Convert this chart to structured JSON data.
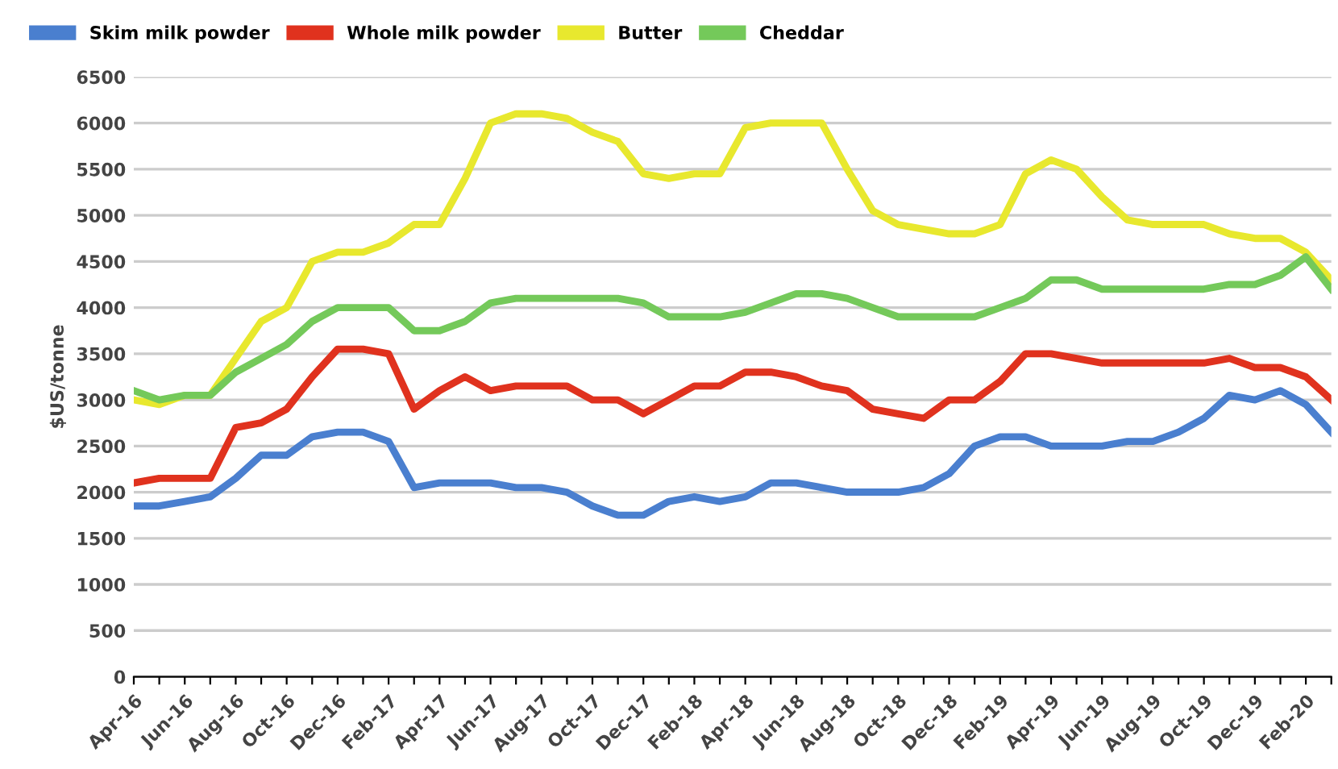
{
  "chart_data": {
    "type": "line",
    "ylabel": "$US/tonne",
    "categories": [
      "Apr-16",
      null,
      "Jun-16",
      null,
      "Aug-16",
      null,
      "Oct-16",
      null,
      "Dec-16",
      null,
      "Feb-17",
      null,
      "Apr-17",
      null,
      "Jun-17",
      null,
      "Aug-17",
      null,
      "Oct-17",
      null,
      "Dec-17",
      null,
      "Feb-18",
      null,
      "Apr-18",
      null,
      "Jun-18",
      null,
      "Aug-18",
      null,
      "Oct-18",
      null,
      "Dec-18",
      null,
      "Feb-19",
      null,
      "Apr-19",
      null,
      "Jun-19",
      null,
      "Aug-19",
      null,
      "Oct-19",
      null,
      "Dec-19",
      null,
      "Feb-20",
      null
    ],
    "series": [
      {
        "name": "Skim milk powder",
        "color": "#4a7fcf",
        "values": [
          1850,
          1850,
          1900,
          1950,
          2150,
          2400,
          2400,
          2600,
          2650,
          2650,
          2550,
          2050,
          2100,
          2100,
          2100,
          2050,
          2050,
          2000,
          1850,
          1750,
          1750,
          1900,
          1950,
          1900,
          1950,
          2100,
          2100,
          2050,
          2000,
          2000,
          2000,
          2050,
          2200,
          2500,
          2600,
          2600,
          2500,
          2500,
          2500,
          2550,
          2550,
          2650,
          2800,
          3050,
          3000,
          3100,
          2950,
          2650
        ]
      },
      {
        "name": "Whole milk powder",
        "color": "#e0321e",
        "values": [
          2100,
          2150,
          2150,
          2150,
          2700,
          2750,
          2900,
          3250,
          3550,
          3550,
          3500,
          2900,
          3100,
          3250,
          3100,
          3150,
          3150,
          3150,
          3000,
          3000,
          2850,
          3000,
          3150,
          3150,
          3300,
          3300,
          3250,
          3150,
          3100,
          2900,
          2850,
          2800,
          3000,
          3000,
          3200,
          3500,
          3500,
          3450,
          3400,
          3400,
          3400,
          3400,
          3400,
          3450,
          3350,
          3350,
          3250,
          3000
        ]
      },
      {
        "name": "Butter",
        "color": "#e8e82e",
        "values": [
          3000,
          2950,
          3050,
          3050,
          3450,
          3850,
          4000,
          4500,
          4600,
          4600,
          4700,
          4900,
          4900,
          5400,
          6000,
          6100,
          6100,
          6050,
          5900,
          5800,
          5450,
          5400,
          5450,
          5450,
          5950,
          6000,
          6000,
          6000,
          5500,
          5050,
          4900,
          4850,
          4800,
          4800,
          4900,
          5450,
          5600,
          5500,
          5200,
          4950,
          4900,
          4900,
          4900,
          4800,
          4750,
          4750,
          4600,
          4300
        ]
      },
      {
        "name": "Cheddar",
        "color": "#74c95a",
        "values": [
          3100,
          3000,
          3050,
          3050,
          3300,
          3450,
          3600,
          3850,
          4000,
          4000,
          4000,
          3750,
          3750,
          3850,
          4050,
          4100,
          4100,
          4100,
          4100,
          4100,
          4050,
          3900,
          3900,
          3900,
          3950,
          4050,
          4150,
          4150,
          4100,
          4000,
          3900,
          3900,
          3900,
          3900,
          4000,
          4100,
          4300,
          4300,
          4200,
          4200,
          4200,
          4200,
          4200,
          4250,
          4250,
          4350,
          4550,
          4200
        ]
      }
    ],
    "ylim": [
      0,
      6500
    ],
    "yticks": [
      0,
      500,
      1000,
      1500,
      2000,
      2500,
      3000,
      3500,
      4000,
      4500,
      5000,
      5500,
      6000,
      6500
    ],
    "grid": "y",
    "legend": "top left",
    "marker": "none",
    "line_style": "solid"
  }
}
